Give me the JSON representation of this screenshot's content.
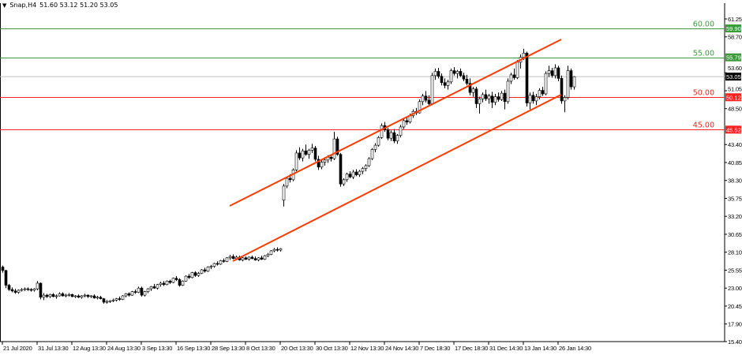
{
  "header": {
    "symbol": "Snap,H4",
    "ohlc_text": "51.60 53.12 51.20 53.05",
    "menu_icon": "triangle-down-icon"
  },
  "chart_data": {
    "type": "candlestick",
    "symbol": "Snap",
    "timeframe": "H4",
    "ylim": [
      15.4,
      61.25
    ],
    "y_ticks": [
      "61.25",
      "58.70",
      "53.60",
      "51.05",
      "48.50",
      "43.40",
      "40.85",
      "38.30",
      "35.75",
      "33.20",
      "30.65",
      "28.10",
      "25.55",
      "23.00",
      "20.45",
      "17.90",
      "15.40"
    ],
    "x_ticks": [
      "21 Jul 2020",
      "31 Jul 13:30",
      "12 Aug 13:30",
      "24 Aug 13:30",
      "3 Sep 13:30",
      "16 Sep 13:30",
      "28 Sep 13:30",
      "8 Oct 13:30",
      "20 Oct 13:30",
      "30 Oct 13:30",
      "12 Nov 13:30",
      "24 Nov 14:30",
      "7 Dec 18:30",
      "17 Dec 18:30",
      "31 Dec 14:30",
      "13 Jan 14:30",
      "26 Jan 14:30"
    ],
    "bars_per_x_tick": 11,
    "colors": {
      "bull_body": "#ffffff",
      "bear_body": "#000000",
      "wick": "#000000",
      "trendline": "#ff3c00",
      "green_level": "#3c9a3c",
      "red_level": "#ff2020",
      "price_line": "#c0c0c0"
    },
    "ohlc": [
      [
        26.0,
        26.2,
        25.2,
        25.5
      ],
      [
        25.5,
        25.6,
        23.0,
        23.4
      ],
      [
        23.4,
        23.6,
        22.6,
        22.8
      ],
      [
        22.8,
        23.1,
        22.4,
        22.6
      ],
      [
        22.6,
        22.9,
        22.2,
        22.4
      ],
      [
        22.4,
        22.8,
        22.2,
        22.7
      ],
      [
        22.7,
        23.0,
        22.5,
        22.8
      ],
      [
        22.8,
        23.1,
        22.6,
        22.9
      ],
      [
        22.9,
        23.1,
        22.6,
        22.8
      ],
      [
        22.8,
        23.0,
        22.5,
        22.7
      ],
      [
        22.7,
        23.0,
        22.5,
        22.9
      ],
      [
        22.9,
        24.0,
        22.7,
        23.7
      ],
      [
        23.7,
        23.8,
        21.4,
        21.7
      ],
      [
        21.7,
        22.3,
        21.3,
        22.0
      ],
      [
        22.0,
        22.2,
        21.6,
        21.8
      ],
      [
        21.8,
        22.2,
        21.6,
        22.1
      ],
      [
        22.1,
        22.3,
        21.7,
        21.8
      ],
      [
        21.8,
        22.1,
        21.5,
        21.9
      ],
      [
        21.9,
        22.4,
        21.8,
        22.2
      ],
      [
        22.2,
        22.4,
        21.8,
        21.9
      ],
      [
        21.9,
        22.2,
        21.7,
        22.0
      ],
      [
        22.0,
        22.3,
        21.8,
        22.1
      ],
      [
        22.1,
        22.2,
        21.7,
        21.8
      ],
      [
        21.8,
        22.0,
        21.6,
        21.9
      ],
      [
        21.9,
        22.1,
        21.6,
        21.7
      ],
      [
        21.7,
        22.0,
        21.5,
        21.9
      ],
      [
        21.9,
        22.2,
        21.7,
        22.0
      ],
      [
        22.0,
        22.1,
        21.6,
        21.8
      ],
      [
        21.8,
        22.0,
        21.6,
        21.9
      ],
      [
        21.9,
        22.1,
        21.5,
        21.6
      ],
      [
        21.6,
        21.9,
        21.4,
        21.7
      ],
      [
        21.7,
        21.9,
        21.4,
        21.5
      ],
      [
        21.5,
        21.6,
        20.8,
        21.0
      ],
      [
        21.0,
        21.3,
        20.8,
        21.1
      ],
      [
        21.1,
        21.3,
        20.9,
        21.2
      ],
      [
        21.2,
        21.5,
        21.0,
        21.3
      ],
      [
        21.3,
        21.6,
        21.1,
        21.5
      ],
      [
        21.5,
        21.8,
        21.2,
        21.4
      ],
      [
        21.4,
        22.0,
        21.3,
        21.9
      ],
      [
        21.9,
        22.3,
        21.7,
        22.2
      ],
      [
        22.2,
        22.4,
        21.8,
        22.0
      ],
      [
        22.0,
        22.6,
        21.9,
        22.5
      ],
      [
        22.5,
        22.8,
        22.2,
        22.4
      ],
      [
        22.4,
        23.2,
        22.3,
        23.0
      ],
      [
        23.0,
        23.2,
        21.8,
        22.0
      ],
      [
        22.0,
        22.6,
        21.8,
        22.5
      ],
      [
        22.5,
        23.0,
        22.3,
        22.9
      ],
      [
        22.9,
        23.3,
        22.6,
        23.2
      ],
      [
        23.2,
        23.6,
        22.9,
        23.0
      ],
      [
        23.0,
        23.6,
        22.8,
        23.5
      ],
      [
        23.5,
        23.9,
        23.2,
        23.7
      ],
      [
        23.7,
        24.0,
        23.3,
        23.5
      ],
      [
        23.5,
        24.1,
        23.4,
        24.0
      ],
      [
        24.0,
        24.2,
        23.6,
        23.8
      ],
      [
        23.8,
        24.5,
        23.7,
        24.4
      ],
      [
        24.4,
        24.7,
        24.0,
        24.2
      ],
      [
        24.2,
        24.4,
        23.2,
        23.4
      ],
      [
        23.4,
        24.1,
        23.3,
        24.0
      ],
      [
        24.0,
        24.8,
        23.9,
        24.7
      ],
      [
        24.7,
        25.0,
        24.3,
        24.5
      ],
      [
        24.5,
        25.3,
        24.4,
        25.2
      ],
      [
        25.2,
        25.4,
        24.6,
        24.8
      ],
      [
        24.8,
        25.3,
        24.6,
        25.1
      ],
      [
        25.1,
        25.7,
        25.0,
        25.6
      ],
      [
        25.6,
        25.9,
        25.2,
        25.4
      ],
      [
        25.4,
        26.1,
        25.3,
        26.0
      ],
      [
        26.0,
        26.3,
        25.7,
        26.1
      ],
      [
        26.1,
        26.6,
        25.9,
        26.5
      ],
      [
        26.5,
        26.8,
        26.2,
        26.4
      ],
      [
        26.4,
        27.0,
        26.3,
        26.9
      ],
      [
        26.9,
        27.2,
        26.6,
        26.8
      ],
      [
        26.8,
        27.4,
        26.7,
        27.3
      ],
      [
        27.3,
        27.7,
        27.0,
        27.5
      ],
      [
        27.5,
        27.8,
        27.1,
        27.2
      ],
      [
        27.2,
        27.6,
        27.0,
        27.4
      ],
      [
        27.4,
        27.6,
        26.9,
        27.0
      ],
      [
        27.0,
        27.4,
        26.8,
        27.3
      ],
      [
        27.3,
        27.5,
        27.0,
        27.1
      ],
      [
        27.1,
        27.5,
        26.9,
        27.4
      ],
      [
        27.4,
        27.6,
        27.1,
        27.2
      ],
      [
        27.2,
        27.5,
        26.9,
        27.0
      ],
      [
        27.0,
        27.4,
        26.8,
        27.3
      ],
      [
        27.3,
        27.6,
        27.0,
        27.1
      ],
      [
        27.1,
        27.7,
        27.0,
        27.6
      ],
      [
        27.6,
        28.0,
        27.4,
        27.8
      ],
      [
        27.8,
        28.4,
        27.7,
        28.3
      ],
      [
        28.3,
        28.7,
        28.1,
        28.5
      ],
      [
        28.5,
        28.8,
        28.2,
        28.4
      ],
      [
        28.4,
        28.7,
        28.2,
        28.6
      ],
      [
        35.5,
        37.8,
        34.6,
        37.5
      ],
      [
        37.5,
        38.8,
        37.2,
        38.6
      ],
      [
        38.6,
        39.2,
        38.0,
        38.4
      ],
      [
        38.4,
        40.0,
        38.2,
        39.8
      ],
      [
        39.8,
        42.6,
        39.6,
        42.2
      ],
      [
        42.2,
        43.0,
        41.2,
        41.5
      ],
      [
        41.5,
        42.8,
        41.0,
        42.5
      ],
      [
        42.5,
        43.4,
        41.8,
        42.0
      ],
      [
        42.0,
        42.8,
        41.4,
        42.6
      ],
      [
        42.6,
        43.5,
        42.2,
        42.9
      ],
      [
        42.9,
        43.2,
        41.0,
        41.3
      ],
      [
        41.3,
        41.8,
        39.8,
        40.2
      ],
      [
        40.2,
        41.2,
        39.9,
        40.9
      ],
      [
        40.9,
        41.6,
        40.4,
        41.2
      ],
      [
        41.2,
        41.9,
        40.8,
        41.6
      ],
      [
        41.6,
        42.0,
        41.0,
        41.4
      ],
      [
        41.4,
        45.2,
        41.2,
        44.2
      ],
      [
        44.2,
        44.5,
        41.8,
        42.0
      ],
      [
        42.0,
        42.2,
        37.4,
        37.8
      ],
      [
        37.8,
        38.6,
        37.5,
        38.4
      ],
      [
        38.4,
        39.4,
        38.1,
        39.2
      ],
      [
        39.2,
        39.6,
        38.6,
        38.8
      ],
      [
        38.8,
        39.8,
        38.5,
        39.5
      ],
      [
        39.5,
        39.9,
        38.9,
        39.1
      ],
      [
        39.1,
        39.8,
        38.8,
        39.6
      ],
      [
        39.6,
        40.2,
        39.2,
        40.0
      ],
      [
        40.0,
        40.6,
        39.6,
        40.4
      ],
      [
        40.4,
        41.6,
        40.2,
        41.4
      ],
      [
        41.4,
        42.9,
        41.2,
        42.7
      ],
      [
        42.7,
        43.6,
        42.3,
        43.3
      ],
      [
        43.3,
        44.6,
        43.1,
        44.4
      ],
      [
        44.4,
        46.4,
        44.2,
        46.1
      ],
      [
        46.1,
        46.6,
        45.2,
        45.5
      ],
      [
        45.5,
        45.8,
        44.0,
        44.3
      ],
      [
        44.3,
        45.4,
        43.9,
        45.1
      ],
      [
        45.1,
        45.6,
        43.6,
        43.9
      ],
      [
        43.9,
        44.9,
        43.5,
        44.7
      ],
      [
        44.7,
        46.2,
        44.4,
        45.9
      ],
      [
        45.9,
        47.0,
        45.6,
        46.8
      ],
      [
        46.8,
        47.4,
        46.2,
        46.6
      ],
      [
        46.6,
        47.8,
        46.4,
        47.5
      ],
      [
        47.5,
        48.4,
        47.2,
        48.1
      ],
      [
        48.1,
        48.6,
        47.6,
        47.9
      ],
      [
        47.9,
        49.8,
        47.8,
        49.5
      ],
      [
        49.5,
        50.6,
        49.0,
        50.3
      ],
      [
        50.3,
        51.0,
        49.4,
        49.7
      ],
      [
        49.7,
        50.4,
        48.8,
        49.2
      ],
      [
        49.2,
        53.6,
        49.0,
        53.2
      ],
      [
        53.2,
        54.2,
        52.6,
        53.8
      ],
      [
        53.8,
        54.3,
        52.8,
        53.1
      ],
      [
        53.1,
        53.5,
        51.8,
        52.2
      ],
      [
        52.2,
        52.8,
        51.4,
        51.8
      ],
      [
        51.8,
        52.6,
        51.2,
        52.3
      ],
      [
        52.3,
        54.2,
        52.0,
        53.9
      ],
      [
        53.9,
        54.4,
        53.2,
        53.5
      ],
      [
        53.5,
        54.0,
        52.8,
        53.8
      ],
      [
        53.8,
        54.2,
        53.0,
        53.2
      ],
      [
        53.2,
        53.6,
        52.4,
        52.7
      ],
      [
        52.7,
        53.3,
        51.8,
        52.1
      ],
      [
        52.1,
        52.8,
        50.4,
        50.8
      ],
      [
        50.8,
        51.6,
        50.2,
        51.3
      ],
      [
        51.3,
        51.6,
        48.6,
        49.2
      ],
      [
        49.2,
        50.2,
        47.8,
        49.9
      ],
      [
        49.9,
        50.8,
        49.4,
        50.5
      ],
      [
        50.5,
        51.2,
        49.6,
        49.9
      ],
      [
        49.9,
        50.6,
        49.2,
        50.3
      ],
      [
        50.3,
        50.9,
        48.6,
        49.4
      ],
      [
        49.4,
        50.6,
        49.0,
        50.2
      ],
      [
        50.2,
        50.8,
        49.5,
        49.8
      ],
      [
        49.8,
        51.0,
        49.6,
        50.7
      ],
      [
        50.7,
        51.2,
        48.4,
        49.5
      ],
      [
        49.5,
        52.8,
        49.2,
        52.4
      ],
      [
        52.4,
        53.6,
        52.0,
        53.3
      ],
      [
        53.3,
        54.2,
        52.6,
        52.9
      ],
      [
        52.9,
        55.4,
        52.7,
        55.1
      ],
      [
        55.1,
        56.2,
        54.2,
        55.8
      ],
      [
        55.8,
        57.0,
        55.4,
        56.4
      ],
      [
        56.4,
        56.6,
        48.8,
        49.3
      ],
      [
        49.3,
        50.8,
        48.4,
        50.4
      ],
      [
        50.4,
        50.9,
        49.2,
        49.6
      ],
      [
        49.6,
        50.6,
        49.0,
        50.2
      ],
      [
        50.2,
        51.4,
        49.8,
        51.1
      ],
      [
        51.1,
        51.6,
        50.3,
        50.6
      ],
      [
        50.6,
        53.8,
        50.4,
        53.5
      ],
      [
        53.5,
        54.6,
        53.0,
        53.9
      ],
      [
        53.9,
        54.3,
        52.9,
        53.2
      ],
      [
        53.2,
        54.8,
        52.8,
        54.3
      ],
      [
        54.3,
        54.6,
        52.4,
        52.8
      ],
      [
        52.8,
        53.2,
        49.2,
        49.6
      ],
      [
        49.6,
        50.4,
        48.0,
        50.1
      ],
      [
        50.1,
        54.6,
        49.8,
        53.9
      ],
      [
        53.9,
        54.2,
        51.2,
        51.6
      ],
      [
        51.6,
        53.12,
        51.2,
        53.05
      ]
    ],
    "levels": [
      {
        "label": "60.00",
        "price": 59.9,
        "tag": "59.90",
        "color": "#3c9a3c"
      },
      {
        "label": "55.00",
        "price": 55.79,
        "tag": "55.79",
        "color": "#3c9a3c"
      },
      {
        "label": "50.00",
        "price": 50.12,
        "tag": "50.12",
        "color": "#ff2020"
      },
      {
        "label": "45.00",
        "price": 45.52,
        "tag": "45.52",
        "color": "#ff2020"
      }
    ],
    "current_price": {
      "price": 53.05,
      "tag": "53.05"
    },
    "trendlines": [
      {
        "from_bar": 72,
        "from_price": 34.68,
        "to_bar": 177,
        "to_price": 58.34
      },
      {
        "from_bar": 73,
        "from_price": 26.83,
        "to_bar": 177,
        "to_price": 50.49
      }
    ]
  }
}
